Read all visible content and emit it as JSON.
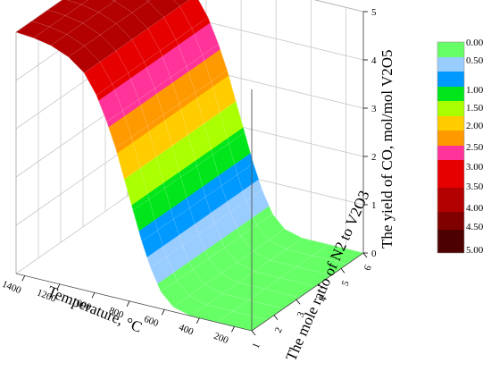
{
  "chart_data": {
    "type": "surface3d",
    "title": "",
    "xlabel": "Temperature, °C",
    "ylabel": "The mole ratio of N2 to V2O3",
    "zlabel": "The yield of CO, mol/mol V2O5",
    "x_ticks": [
      "200",
      "400",
      "600",
      "800",
      "1000",
      "1200",
      "1400"
    ],
    "y_ticks": [
      "1",
      "2",
      "3",
      "4",
      "5",
      "6"
    ],
    "z_ticks": [
      "0",
      "1",
      "2",
      "3",
      "4",
      "5"
    ],
    "xlim": [
      100,
      1450
    ],
    "ylim": [
      1,
      6
    ],
    "zlim": [
      0,
      5
    ],
    "surface": {
      "temperature": [
        100,
        300,
        450,
        550,
        620,
        680,
        730,
        780,
        830,
        880,
        930,
        990,
        1060,
        1150,
        1250,
        1350,
        1450
      ],
      "yield": [
        0,
        0,
        0,
        0.1,
        0.35,
        0.8,
        1.3,
        1.9,
        2.5,
        3.1,
        3.6,
        4.1,
        4.5,
        4.75,
        4.9,
        4.97,
        5
      ]
    },
    "legend": {
      "placement": "right",
      "levels": [
        "0.00",
        "0.50",
        "1.00",
        "1.50",
        "2.00",
        "2.50",
        "3.00",
        "3.50",
        "4.00",
        "4.50",
        "5.00"
      ],
      "colors": [
        "#66ff66",
        "#99ccff",
        "#0099ff",
        "#00e61a",
        "#aaff00",
        "#ffcc00",
        "#ff9900",
        "#ff3399",
        "#e60000",
        "#b30000",
        "#800000",
        "#4d0000"
      ]
    }
  }
}
